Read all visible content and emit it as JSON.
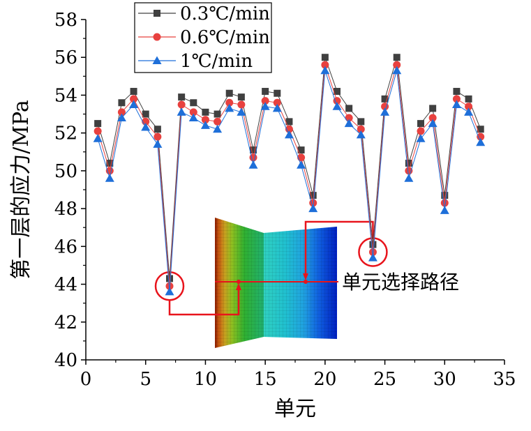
{
  "chart_data": {
    "type": "line",
    "xlabel": "单元",
    "ylabel": "第一层的应力/MPa",
    "xlim": [
      0,
      35
    ],
    "ylim": [
      40,
      58
    ],
    "xticks": [
      0,
      5,
      10,
      15,
      20,
      25,
      30,
      35
    ],
    "yticks": [
      40,
      42,
      44,
      46,
      48,
      50,
      52,
      54,
      56,
      58
    ],
    "grid": false,
    "legend_position": "top-left",
    "x": [
      1,
      2,
      3,
      4,
      5,
      6,
      7,
      8,
      9,
      10,
      11,
      12,
      13,
      14,
      15,
      16,
      17,
      18,
      19,
      20,
      21,
      22,
      23,
      24,
      25,
      26,
      27,
      28,
      29,
      30,
      31,
      32,
      33
    ],
    "series": [
      {
        "name": "0.3℃/min",
        "color": "#404040",
        "marker": "square",
        "values": [
          52.5,
          50.4,
          53.6,
          54.2,
          53.0,
          52.2,
          44.3,
          53.9,
          53.6,
          53.1,
          53.0,
          54.1,
          53.9,
          51.1,
          54.2,
          54.1,
          52.6,
          51.1,
          48.7,
          56.0,
          54.2,
          53.3,
          52.6,
          46.1,
          53.8,
          56.0,
          50.4,
          52.5,
          53.3,
          48.7,
          54.2,
          53.8,
          52.2
        ]
      },
      {
        "name": "0.6℃/min",
        "color": "#e8413f",
        "marker": "circle",
        "values": [
          52.1,
          50.0,
          53.1,
          53.8,
          52.6,
          51.8,
          43.9,
          53.5,
          53.1,
          52.7,
          52.6,
          53.6,
          53.5,
          50.7,
          53.7,
          53.6,
          52.2,
          50.7,
          48.3,
          55.6,
          53.7,
          52.8,
          52.2,
          45.7,
          53.4,
          55.6,
          50.0,
          52.1,
          52.8,
          48.3,
          53.8,
          53.4,
          51.8
        ]
      },
      {
        "name": "1℃/min",
        "color": "#1e6fd9",
        "marker": "triangle",
        "values": [
          51.7,
          49.6,
          52.8,
          53.5,
          52.3,
          51.4,
          43.6,
          53.1,
          52.8,
          52.4,
          52.2,
          53.3,
          53.1,
          50.3,
          53.4,
          53.3,
          51.9,
          50.3,
          48.0,
          55.3,
          53.4,
          52.5,
          51.9,
          45.4,
          53.1,
          55.3,
          49.6,
          51.7,
          52.5,
          47.9,
          53.5,
          53.1,
          51.5
        ]
      }
    ],
    "annotation": {
      "text": "单元选择路径",
      "highlight_x": [
        7,
        24
      ]
    }
  }
}
